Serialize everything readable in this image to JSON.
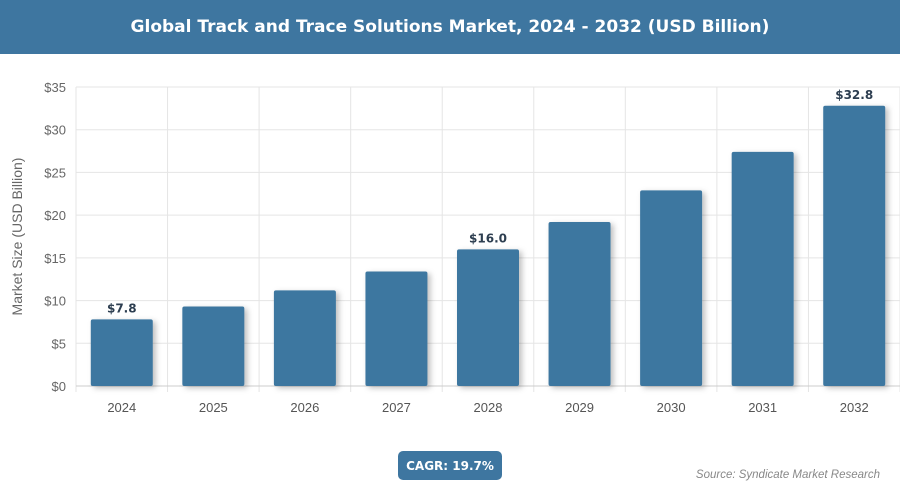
{
  "chart_data": {
    "type": "bar",
    "title": "Global Track and Trace Solutions Market, 2024 - 2032 (USD Billion)",
    "xlabel": "",
    "ylabel": "Market Size (USD Billion)",
    "categories": [
      "2024",
      "2025",
      "2026",
      "2027",
      "2028",
      "2029",
      "2030",
      "2031",
      "2032"
    ],
    "values": [
      7.8,
      9.3,
      11.2,
      13.4,
      16.0,
      19.2,
      22.9,
      27.4,
      32.8
    ],
    "data_labels": {
      "0": "$7.8",
      "4": "$16.0",
      "8": "$32.8"
    },
    "ylim": [
      0,
      35
    ],
    "yticks": [
      0,
      5,
      10,
      15,
      20,
      25,
      30,
      35
    ],
    "ytick_labels": [
      "$0",
      "$5",
      "$10",
      "$15",
      "$20",
      "$25",
      "$30",
      "$35"
    ],
    "grid": true,
    "bar_color": "#3e77a0"
  },
  "cagr": "CAGR: 19.7%",
  "source": "Source: Syndicate Market Research",
  "header_color": "#3e76a0"
}
